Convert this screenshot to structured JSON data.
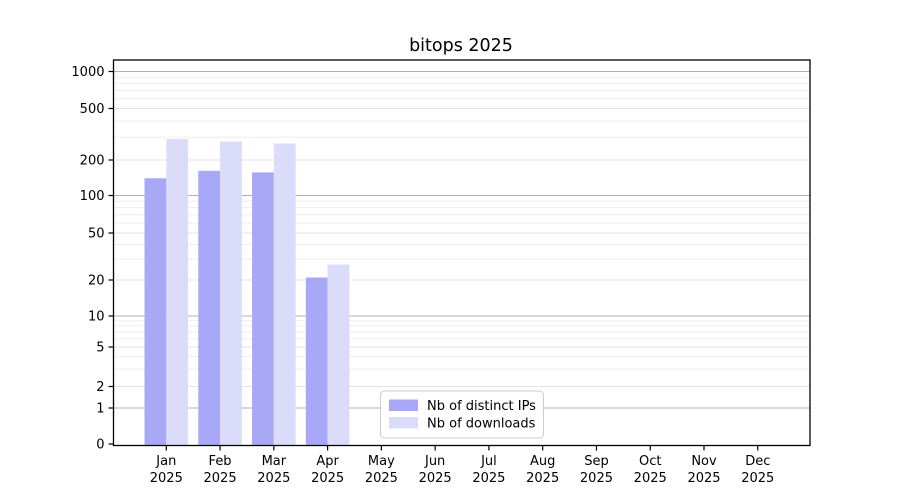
{
  "title": "bitops 2025",
  "chart_data": {
    "type": "bar",
    "title": "bitops 2025",
    "categories": [
      "Jan",
      "Feb",
      "Mar",
      "Apr",
      "May",
      "Jun",
      "Jul",
      "Aug",
      "Sep",
      "Oct",
      "Nov",
      "Dec"
    ],
    "year_label": "2025",
    "series": [
      {
        "name": "Nb of distinct IPs",
        "color": "#a8a8f7",
        "values": [
          140,
          162,
          157,
          21,
          null,
          null,
          null,
          null,
          null,
          null,
          null,
          null
        ]
      },
      {
        "name": "Nb of downloads",
        "color": "#dbdbfa",
        "values": [
          290,
          278,
          268,
          27,
          null,
          null,
          null,
          null,
          null,
          null,
          null,
          null
        ]
      }
    ],
    "yticks": [
      0,
      1,
      2,
      5,
      10,
      20,
      50,
      100,
      200,
      500,
      1000
    ],
    "ylabel": "",
    "xlabel": "",
    "yscale": "log-like (0,1,2,5,10,20,50,100,200,500,1000)",
    "ylim": [
      0,
      1200
    ],
    "grid": "horizontal major and minor",
    "legend_position": "lower center-left inside plot",
    "colors": {
      "background": "#ffffff",
      "axis": "#000000",
      "grid_major": "#b3b3b3",
      "grid_mid": "#e3e3e3",
      "grid_minor": "#ededed",
      "legend_border": "#cccccc"
    }
  }
}
